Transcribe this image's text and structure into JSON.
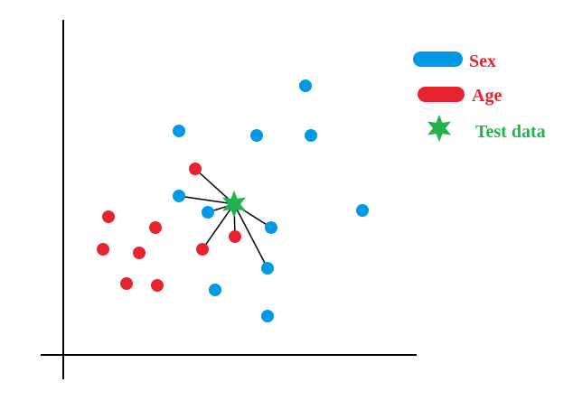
{
  "chart_data": {
    "type": "scatter",
    "title": "",
    "xlabel": "",
    "ylabel": "",
    "grid": false,
    "legend_placement": "top-right",
    "colors": {
      "blue": "#0099e6",
      "red": "#e8232e",
      "green": "#22b24c",
      "axis": "#000000",
      "line": "#000000"
    },
    "series": [
      {
        "name": "Sex",
        "marker": "dot",
        "color": "#0099e6",
        "points": [
          {
            "x": 268,
            "y": 298
          },
          {
            "x": 274,
            "y": 243
          },
          {
            "x": 214,
            "y": 243
          },
          {
            "x": 128,
            "y": 248
          },
          {
            "x": 128,
            "y": 176
          },
          {
            "x": 160,
            "y": 158
          },
          {
            "x": 230,
            "y": 141
          },
          {
            "x": 331,
            "y": 160
          },
          {
            "x": 226,
            "y": 96
          },
          {
            "x": 168,
            "y": 72
          },
          {
            "x": 226,
            "y": 43
          }
        ]
      },
      {
        "name": "Age",
        "marker": "dot",
        "color": "#e8232e",
        "points": [
          {
            "x": 146,
            "y": 206
          },
          {
            "x": 50,
            "y": 153
          },
          {
            "x": 102,
            "y": 141
          },
          {
            "x": 44,
            "y": 117
          },
          {
            "x": 84,
            "y": 113
          },
          {
            "x": 154,
            "y": 117
          },
          {
            "x": 190,
            "y": 131
          },
          {
            "x": 70,
            "y": 79
          },
          {
            "x": 104,
            "y": 77
          }
        ]
      },
      {
        "name": "Test data",
        "marker": "star",
        "color": "#22b24c",
        "points": [
          {
            "x": 189,
            "y": 167
          }
        ]
      }
    ],
    "neighbor_lines": [
      {
        "x": 146,
        "y": 206
      },
      {
        "x": 128,
        "y": 176
      },
      {
        "x": 160,
        "y": 158
      },
      {
        "x": 154,
        "y": 117
      },
      {
        "x": 190,
        "y": 131
      },
      {
        "x": 230,
        "y": 141
      },
      {
        "x": 226,
        "y": 96
      }
    ]
  }
}
